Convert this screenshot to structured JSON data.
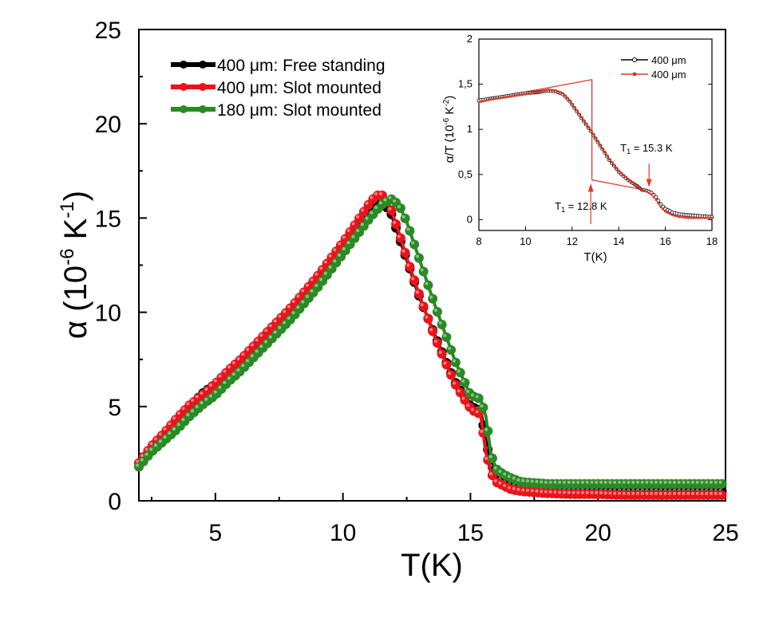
{
  "chart_data": [
    {
      "type": "scatter",
      "xlabel": "T(K)",
      "ylabel": "α (10⁻⁶ K⁻¹)",
      "ylabel_parts": {
        "pre": "α (10",
        "exp": "-6",
        "mid": " K",
        "exp2": "-1",
        "post": ")"
      },
      "xlim": [
        2,
        25
      ],
      "ylim": [
        0,
        25
      ],
      "xticks": [
        5,
        10,
        15,
        20,
        25
      ],
      "yticks": [
        0,
        5,
        10,
        15,
        20,
        25
      ],
      "xtick_labels": [
        "5",
        "10",
        "15",
        "20",
        "25"
      ],
      "ytick_labels": [
        "0",
        "5",
        "10",
        "15",
        "20",
        "25"
      ],
      "legend_position": "top-left",
      "grid": false,
      "series": [
        {
          "name": "400 μm: Free standing",
          "color": "#000000",
          "x": [
            2.0,
            2.5,
            3.0,
            3.5,
            4.0,
            4.5,
            5.0,
            5.5,
            6.0,
            6.5,
            7.0,
            7.5,
            8.0,
            8.5,
            9.0,
            9.5,
            10.0,
            10.5,
            11.0,
            11.3,
            11.6,
            11.9,
            12.2,
            12.5,
            12.8,
            13.0,
            13.3,
            13.6,
            14.0,
            14.4,
            14.8,
            15.0,
            15.2,
            15.4,
            15.6,
            15.8,
            16.0,
            16.3,
            16.6,
            17.0,
            17.5,
            18.0,
            19.0,
            20.0,
            21.0,
            22.0,
            23.0,
            24.0,
            25.0
          ],
          "y": [
            2.0,
            2.9,
            3.6,
            4.3,
            5.0,
            5.7,
            6.2,
            6.9,
            7.5,
            8.2,
            8.9,
            9.6,
            10.3,
            11.1,
            11.9,
            12.8,
            13.7,
            14.6,
            15.5,
            15.9,
            15.8,
            15.2,
            14.0,
            12.8,
            11.6,
            10.8,
            9.8,
            8.8,
            7.5,
            6.3,
            5.4,
            5.0,
            4.9,
            4.8,
            3.2,
            2.0,
            1.3,
            1.0,
            0.8,
            0.7,
            0.6,
            0.6,
            0.55,
            0.5,
            0.5,
            0.5,
            0.5,
            0.5,
            0.5
          ]
        },
        {
          "name": "400 μm: Slot mounted",
          "color": "#e8141a",
          "x": [
            2.0,
            2.5,
            3.0,
            3.5,
            4.0,
            4.5,
            5.0,
            5.5,
            6.0,
            6.5,
            7.0,
            7.5,
            8.0,
            8.5,
            9.0,
            9.5,
            10.0,
            10.5,
            11.0,
            11.3,
            11.6,
            11.9,
            12.2,
            12.5,
            12.8,
            13.0,
            13.3,
            13.6,
            14.0,
            14.4,
            14.8,
            15.0,
            15.2,
            15.4,
            15.6,
            15.8,
            16.0,
            16.3,
            16.6,
            17.0,
            17.5,
            18.0,
            19.0,
            20.0,
            21.0,
            22.0,
            23.0,
            24.0,
            25.0
          ],
          "y": [
            2.0,
            2.9,
            3.6,
            4.4,
            5.1,
            5.6,
            6.2,
            6.9,
            7.5,
            8.2,
            8.9,
            9.6,
            10.3,
            11.1,
            11.9,
            12.8,
            13.7,
            14.7,
            15.7,
            16.2,
            16.2,
            15.4,
            14.2,
            12.9,
            11.7,
            10.9,
            9.8,
            8.7,
            7.4,
            6.2,
            5.3,
            4.9,
            4.7,
            4.6,
            2.6,
            1.5,
            1.0,
            0.8,
            0.6,
            0.5,
            0.45,
            0.4,
            0.35,
            0.35,
            0.3,
            0.3,
            0.3,
            0.3,
            0.3
          ]
        },
        {
          "name": "180 μm: Slot mounted",
          "color": "#2a8a24",
          "x": [
            2.0,
            2.5,
            3.0,
            3.5,
            4.0,
            4.5,
            5.0,
            5.5,
            6.0,
            6.5,
            7.0,
            7.5,
            8.0,
            8.5,
            9.0,
            9.5,
            10.0,
            10.5,
            11.0,
            11.3,
            11.6,
            11.9,
            12.2,
            12.5,
            12.8,
            13.0,
            13.3,
            13.6,
            14.0,
            14.4,
            14.8,
            15.0,
            15.2,
            15.4,
            15.6,
            15.8,
            16.0,
            16.3,
            16.6,
            17.0,
            17.5,
            18.0,
            19.0,
            20.0,
            21.0,
            22.0,
            23.0,
            24.0,
            25.0
          ],
          "y": [
            1.8,
            2.6,
            3.2,
            3.8,
            4.5,
            5.1,
            5.6,
            6.3,
            6.9,
            7.6,
            8.3,
            9.0,
            9.7,
            10.5,
            11.3,
            12.2,
            13.1,
            14.0,
            14.9,
            15.4,
            15.8,
            16.0,
            15.7,
            14.8,
            13.6,
            12.8,
            11.6,
            10.4,
            8.9,
            7.4,
            6.2,
            5.6,
            5.5,
            5.4,
            4.5,
            2.5,
            1.7,
            1.4,
            1.2,
            1.0,
            0.95,
            0.9,
            0.9,
            0.9,
            0.9,
            0.9,
            0.9,
            0.9,
            0.9
          ]
        }
      ]
    },
    {
      "type": "line",
      "xlabel": "T(K)",
      "ylabel": "α/T (10⁻⁶ K⁻²)",
      "ylabel_parts": {
        "pre": "α/T (10",
        "exp": "-6",
        "mid": " K",
        "exp2": "-2",
        "post": ")"
      },
      "xlim": [
        8,
        18
      ],
      "ylim": [
        -0.12,
        2.0
      ],
      "xticks": [
        8,
        10,
        12,
        14,
        16,
        18
      ],
      "yticks": [
        0,
        0.5,
        1,
        1.5,
        2
      ],
      "xtick_labels": [
        "8",
        "10",
        "12",
        "14",
        "16",
        "18"
      ],
      "ytick_labels": [
        "0",
        "0,5",
        "1",
        "1,5",
        "2"
      ],
      "legend_position": "top-right",
      "grid": false,
      "series": [
        {
          "name": "400 μm",
          "color": "#000000",
          "x": [
            8.0,
            8.5,
            9.0,
            9.5,
            10.0,
            10.5,
            11.0,
            11.3,
            11.6,
            11.9,
            12.2,
            12.5,
            12.8,
            13.0,
            13.3,
            13.6,
            14.0,
            14.4,
            14.8,
            15.0,
            15.2,
            15.4,
            15.6,
            15.8,
            16.0,
            16.3,
            16.6,
            17.0,
            17.5,
            18.0
          ],
          "y": [
            1.32,
            1.34,
            1.36,
            1.38,
            1.4,
            1.41,
            1.43,
            1.42,
            1.39,
            1.31,
            1.2,
            1.09,
            0.98,
            0.9,
            0.78,
            0.66,
            0.53,
            0.44,
            0.37,
            0.33,
            0.32,
            0.3,
            0.25,
            0.17,
            0.12,
            0.08,
            0.06,
            0.05,
            0.04,
            0.03
          ]
        },
        {
          "name": "400 μm",
          "color": "#e03a2a",
          "x": [
            8.0,
            8.5,
            9.0,
            9.5,
            10.0,
            10.5,
            11.0,
            11.3,
            11.6,
            11.9,
            12.2,
            12.5,
            12.8,
            13.0,
            13.3,
            13.6,
            14.0,
            14.4,
            14.8,
            15.0,
            15.2,
            15.4,
            15.6,
            15.8,
            16.0,
            16.3,
            16.6,
            17.0,
            17.5,
            18.0
          ],
          "y": [
            1.3,
            1.33,
            1.35,
            1.37,
            1.39,
            1.41,
            1.44,
            1.43,
            1.4,
            1.32,
            1.21,
            1.1,
            0.99,
            0.91,
            0.79,
            0.67,
            0.54,
            0.45,
            0.37,
            0.33,
            0.31,
            0.28,
            0.22,
            0.14,
            0.09,
            0.05,
            0.03,
            0.02,
            0.02,
            0.02
          ]
        }
      ],
      "annotations": [
        {
          "label": "T",
          "sub": "1",
          "rest": " = 12.8 K",
          "x": 12.8
        },
        {
          "label": "T",
          "sub": "1",
          "rest": " = 15.3 K",
          "x": 15.3
        }
      ]
    }
  ]
}
